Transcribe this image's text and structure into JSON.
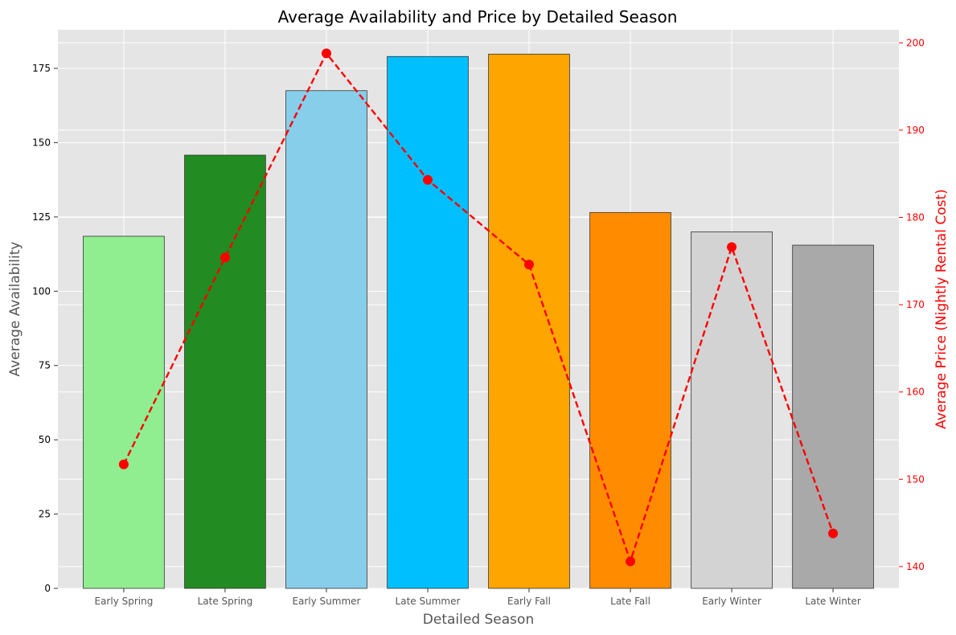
{
  "chart_data": {
    "type": "bar",
    "title": "Average Availability and Price by Detailed Season",
    "xlabel": "Detailed Season",
    "ylabel": "Average Availability",
    "y2label": "Average Price (Nightly Rental Cost)",
    "categories": [
      "Early Spring",
      "Late Spring",
      "Early Summer",
      "Late Summer",
      "Early Fall",
      "Late Fall",
      "Early Winter",
      "Late Winter"
    ],
    "series": [
      {
        "type": "bar",
        "axis": "left",
        "values": [
          118.5,
          145.8,
          167.5,
          179.0,
          179.8,
          126.5,
          120.0,
          115.5
        ],
        "colors": [
          "#90ee90",
          "#228b22",
          "#87ceeb",
          "#00bfff",
          "#ffa500",
          "#ff8c00",
          "#d3d3d3",
          "#a9a9a9"
        ]
      },
      {
        "type": "line",
        "axis": "right",
        "style": "dashed",
        "marker": "circle",
        "color": "#ff0000",
        "values": [
          151.7,
          175.4,
          198.8,
          184.3,
          174.6,
          140.6,
          176.6,
          143.8
        ]
      }
    ],
    "ylim": [
      0,
      188
    ],
    "yticks": [
      0,
      25,
      50,
      75,
      100,
      125,
      150,
      175
    ],
    "y2lim": [
      137.5,
      201.5
    ],
    "y2ticks": [
      140,
      150,
      160,
      170,
      180,
      190,
      200
    ],
    "grid": true,
    "legend": "none",
    "colors": {
      "plot_background": "#e5e5e5",
      "grid": "#ffffff",
      "right_axis": "#ff0000",
      "left_axis_title": "#555555",
      "tick_text": "#000000",
      "category_text": "#555555"
    }
  }
}
